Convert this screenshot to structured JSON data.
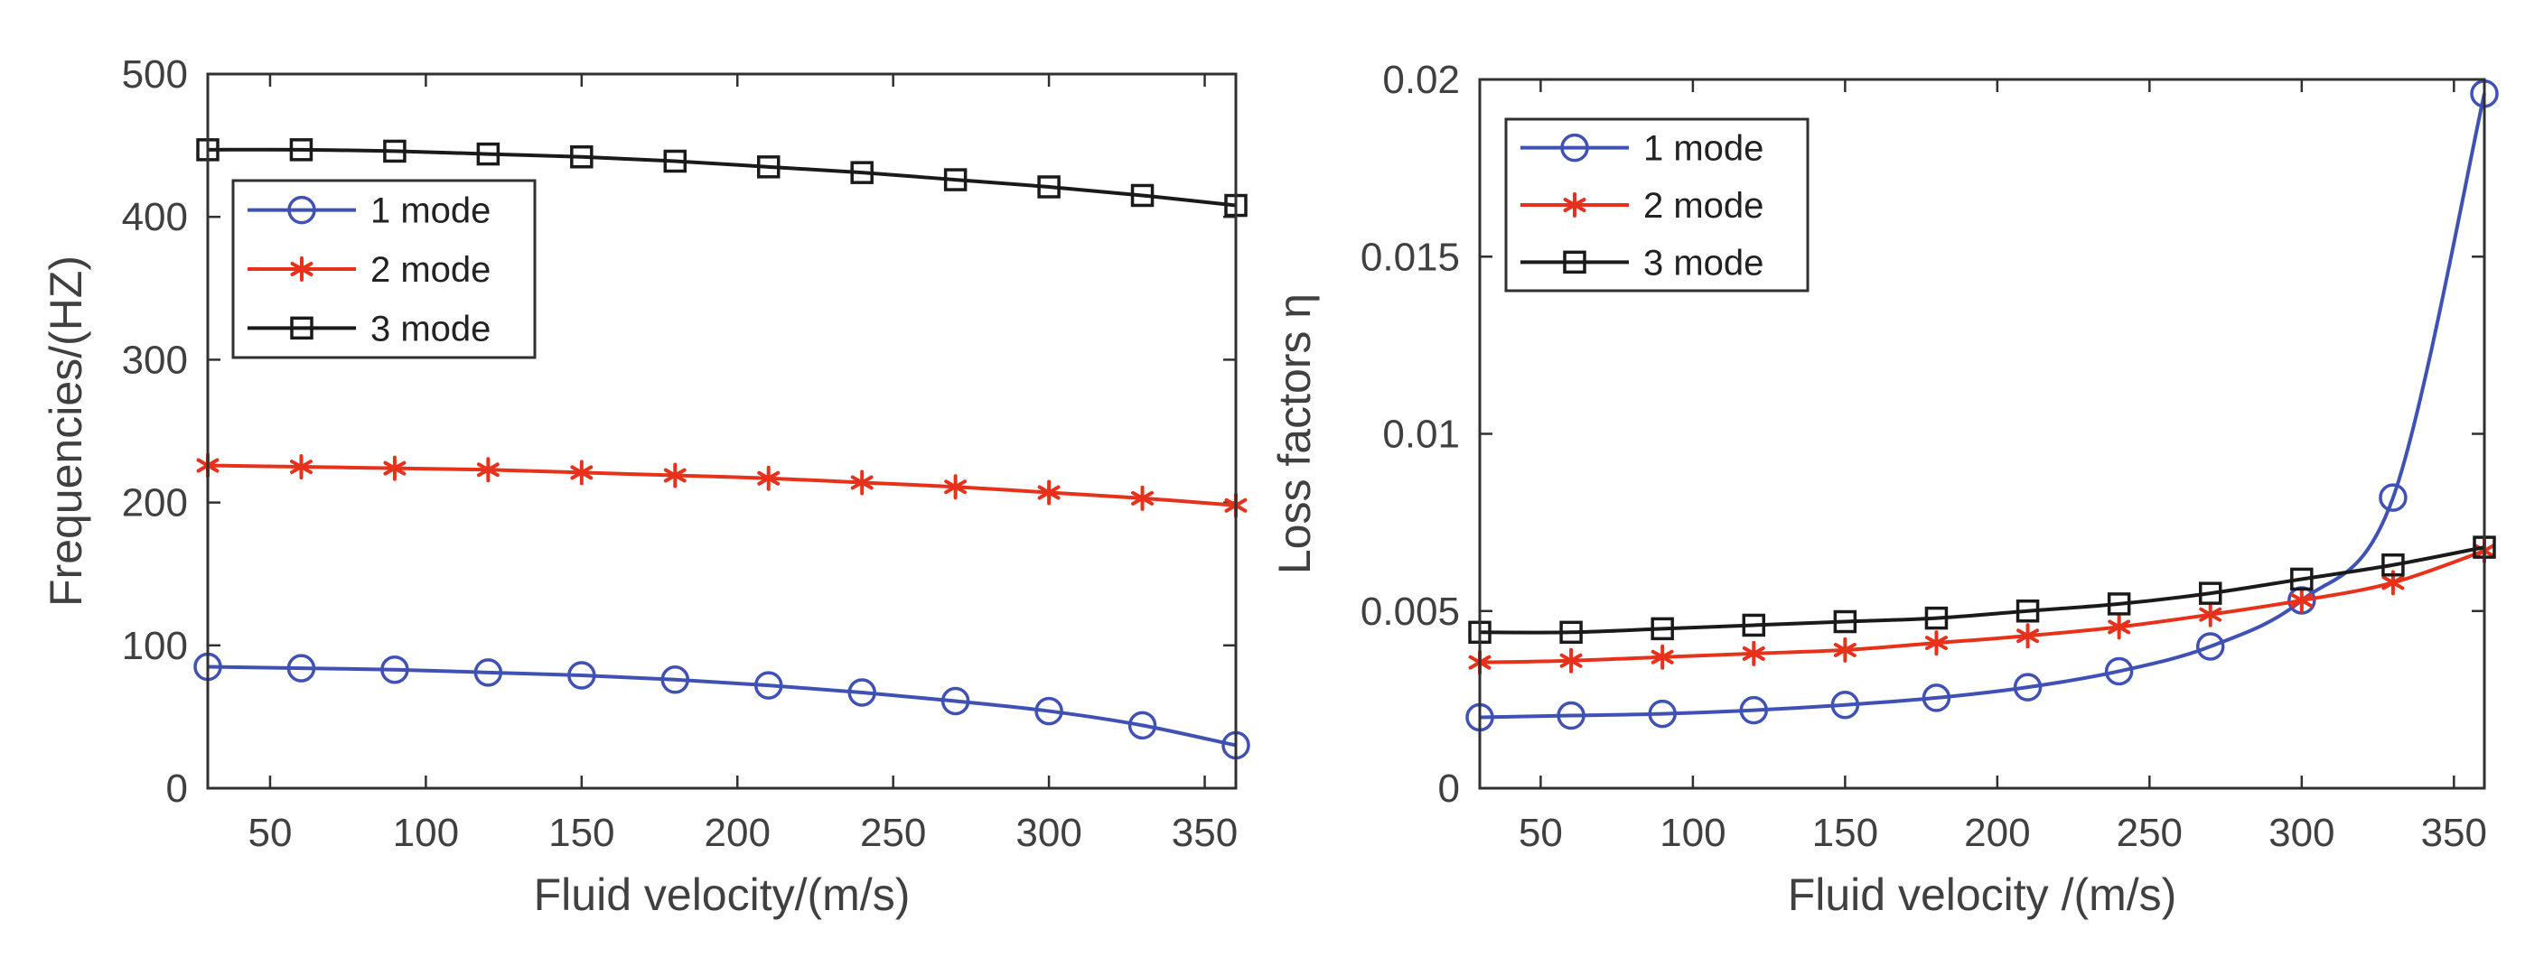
{
  "chart_data": [
    {
      "type": "line",
      "xlabel": "Fluid velocity/(m/s)",
      "ylabel": "Frequencies/(HZ)",
      "xlim": [
        30,
        360
      ],
      "ylim": [
        0,
        500
      ],
      "xticks": [
        "50",
        "100",
        "150",
        "200",
        "250",
        "300",
        "350"
      ],
      "yticks": [
        "0",
        "100",
        "200",
        "300",
        "400",
        "500"
      ],
      "legend_position": "top-left",
      "x": [
        30,
        60,
        90,
        120,
        150,
        180,
        210,
        240,
        270,
        300,
        330,
        360
      ],
      "series": [
        {
          "name": "1 mode",
          "marker": "circle",
          "color": "#3F51B5",
          "values": [
            85,
            84,
            83,
            81,
            79,
            76,
            72,
            67,
            61,
            54,
            44,
            30
          ]
        },
        {
          "name": "2 mode",
          "marker": "star",
          "color": "#E8311B",
          "values": [
            226,
            225,
            224,
            223,
            221,
            219,
            217,
            214,
            211,
            207,
            203,
            198
          ]
        },
        {
          "name": "3 mode",
          "marker": "square",
          "color": "#1A1A1A",
          "values": [
            447,
            447,
            446,
            444,
            442,
            439,
            435,
            431,
            426,
            421,
            415,
            408
          ]
        }
      ]
    },
    {
      "type": "line",
      "xlabel": "Fluid velocity /(m/s)",
      "ylabel": "Loss factors η",
      "xlim": [
        30,
        360
      ],
      "ylim": [
        0,
        0.02
      ],
      "xticks": [
        "50",
        "100",
        "150",
        "200",
        "250",
        "300",
        "350"
      ],
      "yticks": [
        "0",
        "0.005",
        "0.01",
        "0.015",
        "0.02"
      ],
      "legend_position": "top-left",
      "x": [
        30,
        60,
        90,
        120,
        150,
        180,
        210,
        240,
        270,
        300,
        330,
        360
      ],
      "series": [
        {
          "name": "1 mode",
          "marker": "circle",
          "color": "#3F51B5",
          "values": [
            0.002,
            0.00205,
            0.0021,
            0.0022,
            0.00235,
            0.00255,
            0.00285,
            0.0033,
            0.004,
            0.0053,
            0.0082,
            0.0196
          ]
        },
        {
          "name": "2 mode",
          "marker": "star",
          "color": "#E8311B",
          "values": [
            0.00355,
            0.0036,
            0.0037,
            0.0038,
            0.0039,
            0.0041,
            0.0043,
            0.00455,
            0.0049,
            0.0053,
            0.0058,
            0.0067
          ]
        },
        {
          "name": "3 mode",
          "marker": "square",
          "color": "#1A1A1A",
          "values": [
            0.0044,
            0.0044,
            0.0045,
            0.0046,
            0.0047,
            0.0048,
            0.005,
            0.0052,
            0.0055,
            0.0059,
            0.0063,
            0.0068
          ]
        }
      ]
    }
  ]
}
